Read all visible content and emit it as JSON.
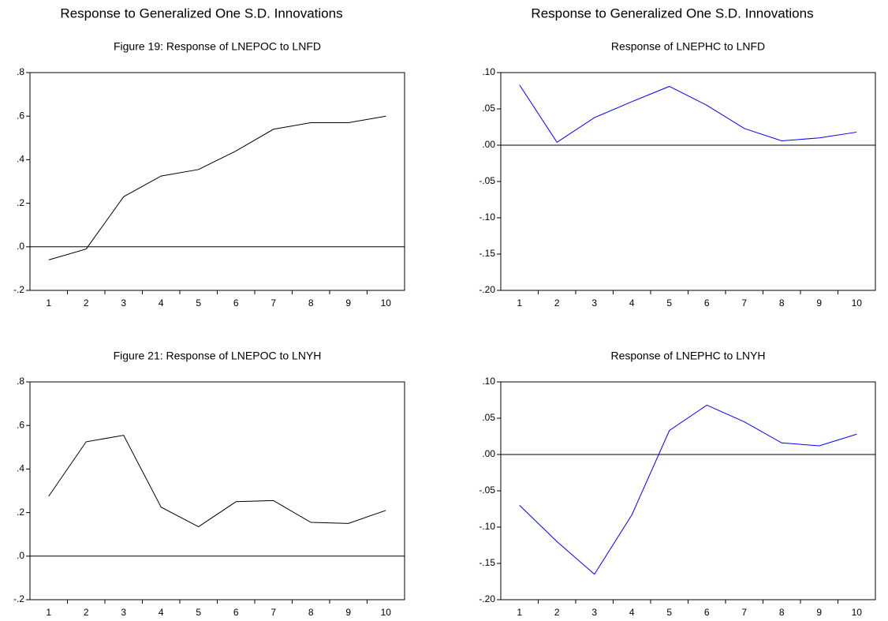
{
  "chart_data": [
    {
      "type": "line",
      "suptitle": "Response to Generalized One S.D. Innovations",
      "title": "Figure 19: Response of LNEPOC to LNFD",
      "categories": [
        "1",
        "2",
        "3",
        "4",
        "5",
        "6",
        "7",
        "8",
        "9",
        "10"
      ],
      "series": [
        {
          "color": "#000000",
          "values": [
            -0.06,
            -0.01,
            0.23,
            0.325,
            0.355,
            0.44,
            0.54,
            0.57,
            0.57,
            0.6
          ]
        }
      ],
      "ylim": [
        -0.2,
        0.8
      ],
      "yticks": [
        {
          "value": -0.2,
          "label": "-.2"
        },
        {
          "value": 0,
          "label": ".0"
        },
        {
          "value": 0.2,
          "label": ".2"
        },
        {
          "value": 0.4,
          "label": ".4"
        },
        {
          "value": 0.6,
          "label": ".6"
        },
        {
          "value": 0.8,
          "label": ".8"
        }
      ],
      "zero_line": true
    },
    {
      "type": "line",
      "suptitle": "Response to Generalized One S.D. Innovations",
      "title": "Response of LNEPHC to LNFD",
      "categories": [
        "1",
        "2",
        "3",
        "4",
        "5",
        "6",
        "7",
        "8",
        "9",
        "10"
      ],
      "series": [
        {
          "color": "#0000ff",
          "values": [
            0.083,
            0.004,
            0.038,
            0.06,
            0.081,
            0.055,
            0.023,
            0.006,
            0.01,
            0.018
          ]
        }
      ],
      "ylim": [
        -0.2,
        0.1
      ],
      "yticks": [
        {
          "value": -0.2,
          "label": "-.20"
        },
        {
          "value": -0.15,
          "label": "-.15"
        },
        {
          "value": -0.1,
          "label": "-.10"
        },
        {
          "value": -0.05,
          "label": "-.05"
        },
        {
          "value": 0,
          "label": ".00"
        },
        {
          "value": 0.05,
          "label": ".05"
        },
        {
          "value": 0.1,
          "label": ".10"
        }
      ],
      "zero_line": true
    },
    {
      "type": "line",
      "title": "Figure 21: Response of LNEPOC to LNYH",
      "categories": [
        "1",
        "2",
        "3",
        "4",
        "5",
        "6",
        "7",
        "8",
        "9",
        "10"
      ],
      "series": [
        {
          "color": "#000000",
          "values": [
            0.275,
            0.525,
            0.555,
            0.225,
            0.135,
            0.25,
            0.255,
            0.155,
            0.15,
            0.21
          ]
        }
      ],
      "ylim": [
        -0.2,
        0.8
      ],
      "yticks": [
        {
          "value": -0.2,
          "label": "-.2"
        },
        {
          "value": 0,
          "label": ".0"
        },
        {
          "value": 0.2,
          "label": ".2"
        },
        {
          "value": 0.4,
          "label": ".4"
        },
        {
          "value": 0.6,
          "label": ".6"
        },
        {
          "value": 0.8,
          "label": ".8"
        }
      ],
      "zero_line": true
    },
    {
      "type": "line",
      "title": "Response of LNEPHC to LNYH",
      "categories": [
        "1",
        "2",
        "3",
        "4",
        "5",
        "6",
        "7",
        "8",
        "9",
        "10"
      ],
      "series": [
        {
          "color": "#0000ff",
          "values": [
            -0.07,
            -0.12,
            -0.165,
            -0.083,
            0.033,
            0.068,
            0.045,
            0.016,
            0.012,
            0.028
          ]
        }
      ],
      "ylim": [
        -0.2,
        0.1
      ],
      "yticks": [
        {
          "value": -0.2,
          "label": "-.20"
        },
        {
          "value": -0.15,
          "label": "-.15"
        },
        {
          "value": -0.1,
          "label": "-.10"
        },
        {
          "value": -0.05,
          "label": "-.05"
        },
        {
          "value": 0,
          "label": ".00"
        },
        {
          "value": 0.05,
          "label": ".05"
        },
        {
          "value": 0.1,
          "label": ".10"
        }
      ],
      "zero_line": true
    }
  ]
}
